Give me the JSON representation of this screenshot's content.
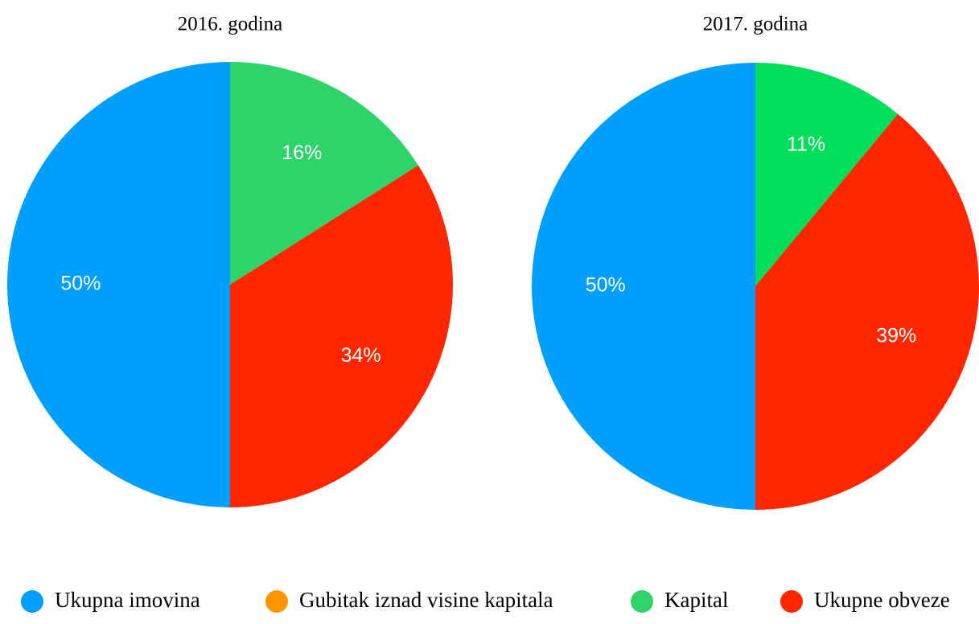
{
  "chart_data": [
    {
      "type": "pie",
      "title": "2016. godina",
      "categories": [
        "Ukupna imovina",
        "Gubitak iznad visine kapitala",
        "Kapital",
        "Ukupne obveze"
      ],
      "values": [
        50,
        0,
        16,
        34
      ],
      "value_labels": [
        "50%",
        null,
        "16%",
        "34%"
      ],
      "colors": [
        "#009ffc",
        "#ff9500",
        "#2ed36a",
        "#ff2600"
      ]
    },
    {
      "type": "pie",
      "title": "2017. godina",
      "categories": [
        "Ukupna imovina",
        "Gubitak iznad visine kapitala",
        "Kapital",
        "Ukupne obveze"
      ],
      "values": [
        50,
        0,
        11,
        39
      ],
      "value_labels": [
        "50%",
        null,
        "11%",
        "39%"
      ],
      "colors": [
        "#009ffc",
        "#ff9500",
        "#00de5b",
        "#ff2600"
      ]
    }
  ]
}
